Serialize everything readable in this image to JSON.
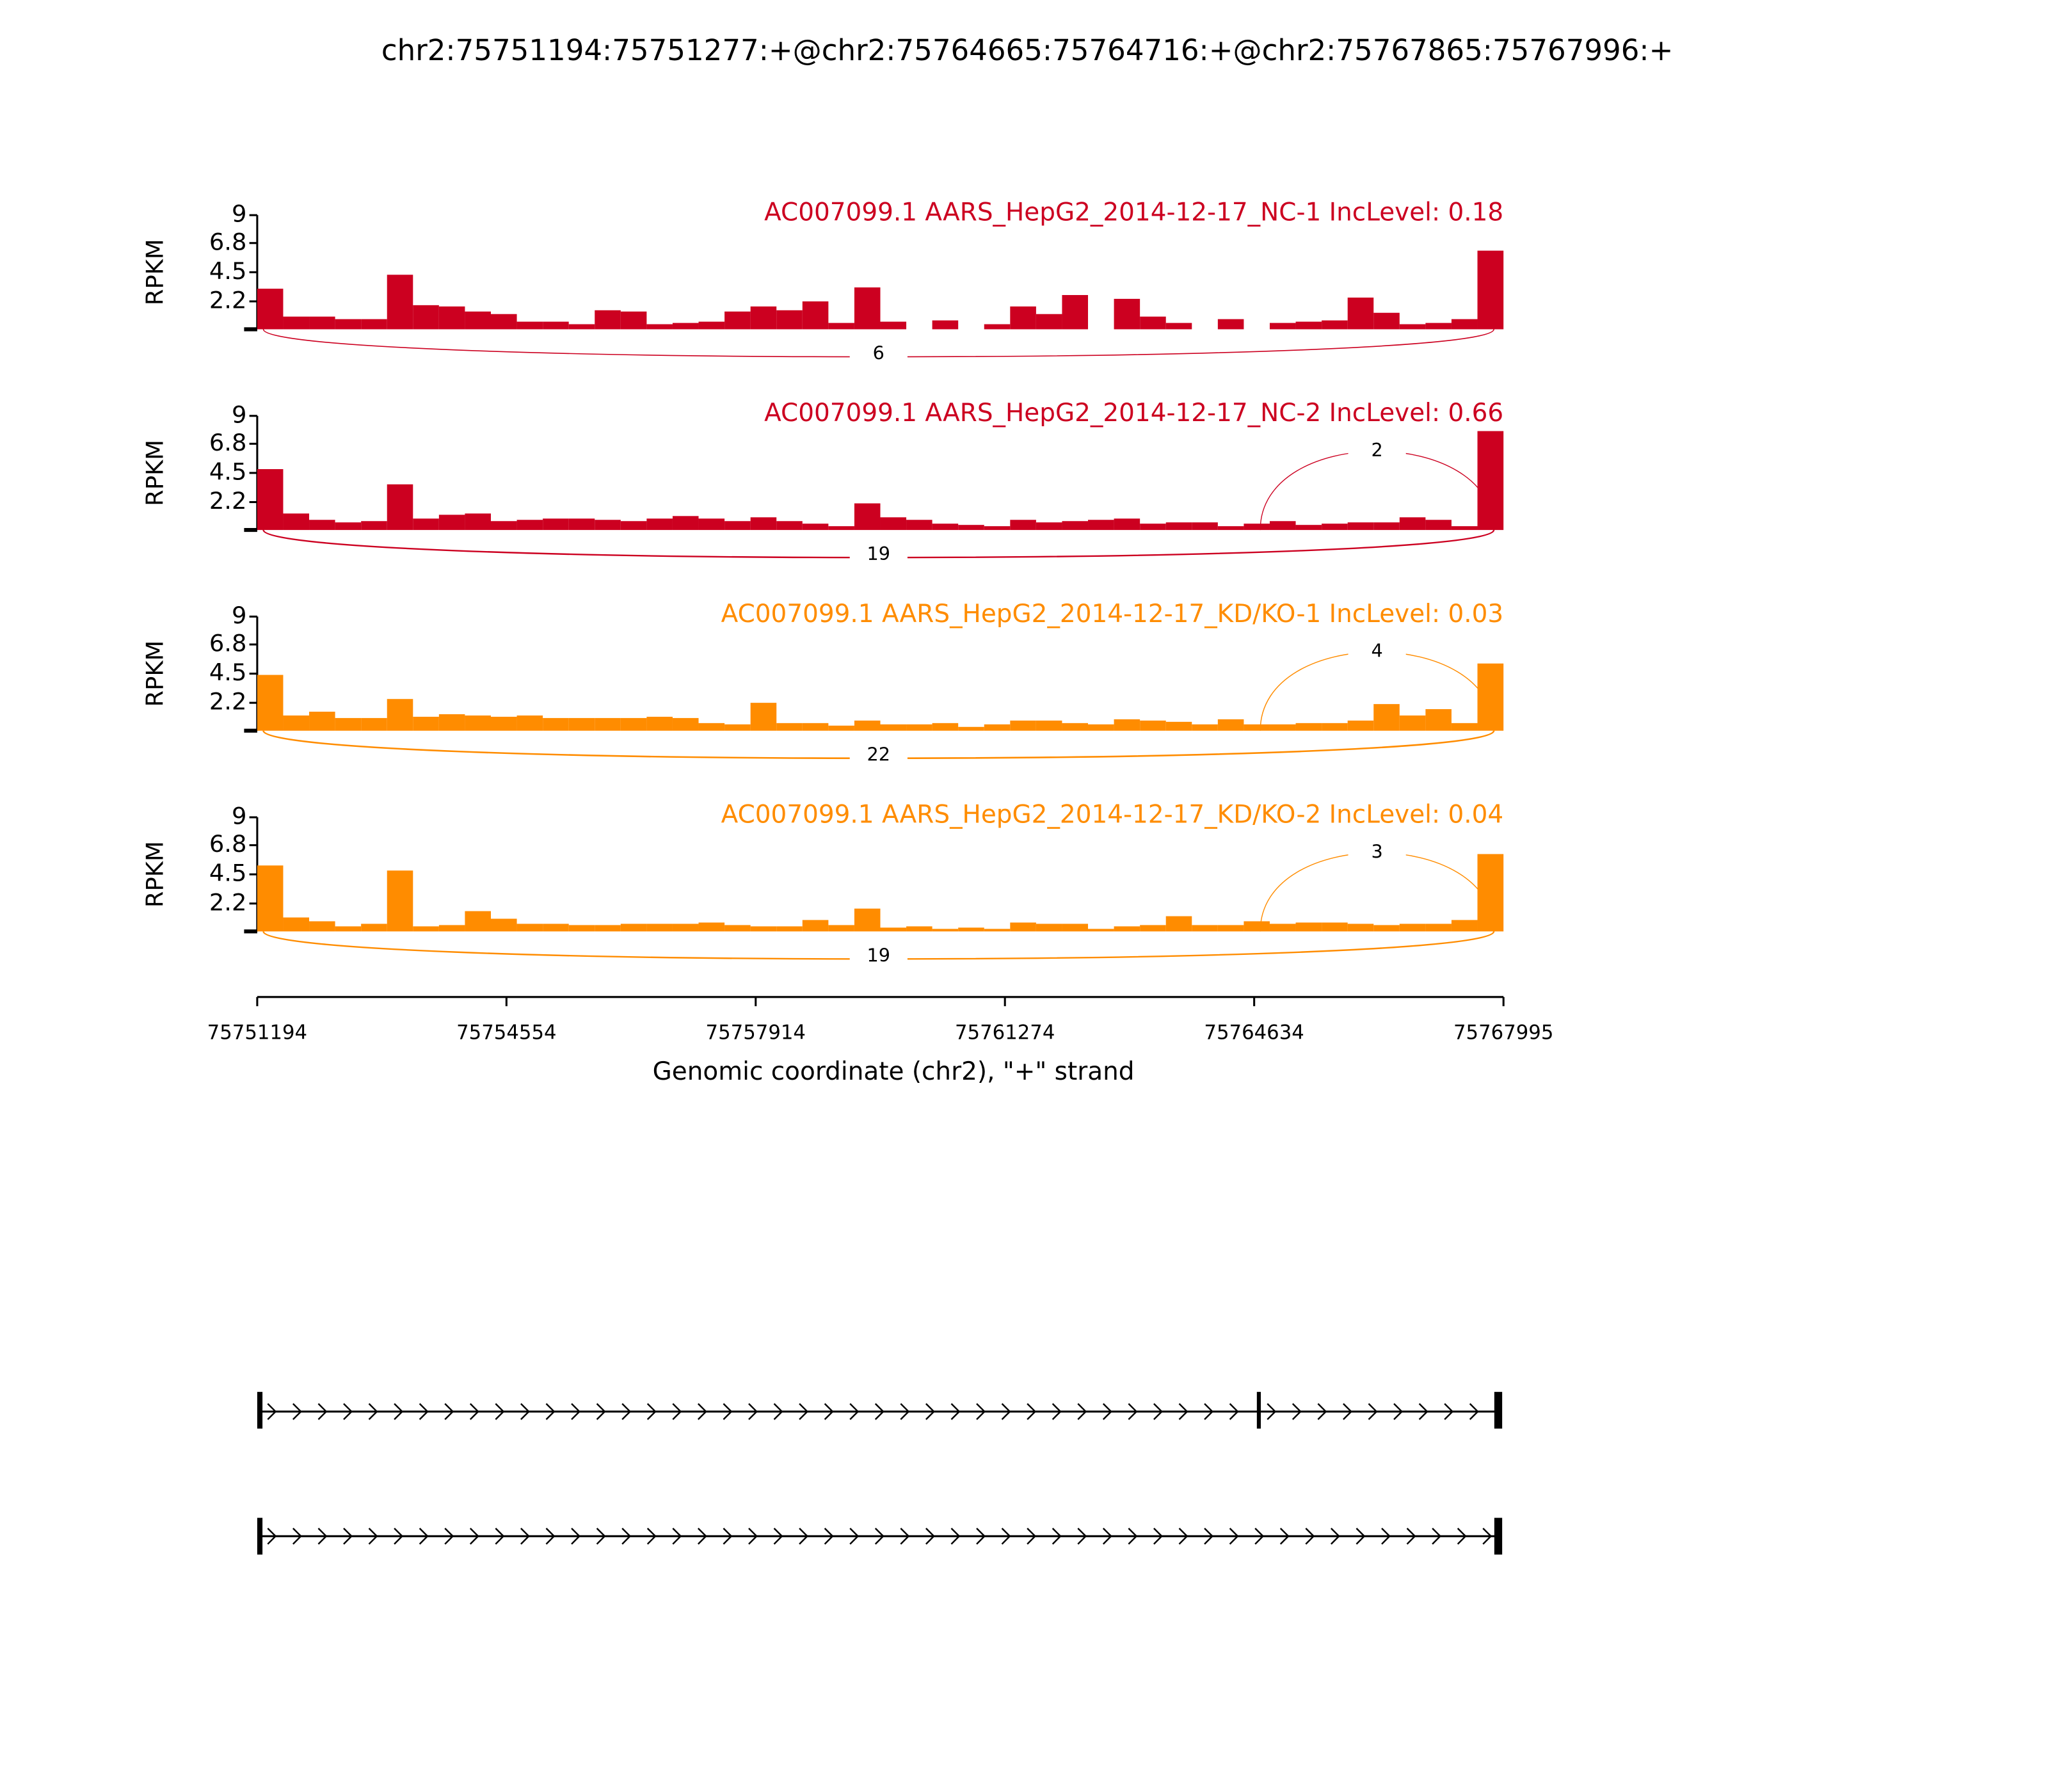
{
  "chart_data": {
    "type": "sashimi",
    "title": "chr2:75751194:75751277:+@chr2:75764665:75764716:+@chr2:75767865:75767996:+",
    "xlabel": "Genomic coordinate (chr2), \"+\" strand",
    "xlim": [
      75751194,
      75767995
    ],
    "xticks": [
      75751194,
      75754554,
      75757914,
      75761274,
      75764634,
      75767995
    ],
    "bins": [
      75751194,
      75751544,
      75751894,
      75752244,
      75752594,
      75752944,
      75753294,
      75753644,
      75753994,
      75754344,
      75754694,
      75755044,
      75755394,
      75755744,
      75756094,
      75756444,
      75756794,
      75757144,
      75757494,
      75757844,
      75758194,
      75758544,
      75758894,
      75759244,
      75759594,
      75759944,
      75760294,
      75760644,
      75760994,
      75761344,
      75761694,
      75762044,
      75762394,
      75762744,
      75763094,
      75763444,
      75763794,
      75764144,
      75764494,
      75764844,
      75765194,
      75765544,
      75765894,
      75766244,
      75766594,
      75766944,
      75767294,
      75767644,
      75767995
    ],
    "tracks": [
      {
        "title": "AC007099.1 AARS_HepG2_2014-12-17_NC-1 IncLevel: 0.18",
        "ylabel": "RPKM",
        "color": "#cc0020",
        "ylim": [
          0,
          9
        ],
        "yticks": [
          2.2,
          4.5,
          6.8,
          9
        ],
        "values": [
          3.2,
          1,
          1,
          0.8,
          0.8,
          4.3,
          1.9,
          1.8,
          1.4,
          1.2,
          0.6,
          0.6,
          0.4,
          1.5,
          1.4,
          0.4,
          0.5,
          0.6,
          1.4,
          1.8,
          1.5,
          2.2,
          0.5,
          3.3,
          0.6,
          0,
          0.7,
          0,
          0.4,
          1.8,
          1.2,
          2.7,
          0,
          2.4,
          1,
          0.5,
          0,
          0.8,
          0,
          0.5,
          0.6,
          0.7,
          2.5,
          1.3,
          0.4,
          0.5,
          0.8,
          6.2
        ],
        "junctions": [
          {
            "start": 75751277,
            "end": 75767865,
            "count": 6,
            "position": "below"
          }
        ]
      },
      {
        "title": "AC007099.1 AARS_HepG2_2014-12-17_NC-2 IncLevel: 0.66",
        "ylabel": "RPKM",
        "color": "#cc0020",
        "ylim": [
          0,
          9
        ],
        "yticks": [
          2.2,
          4.5,
          6.8,
          9
        ],
        "values": [
          4.8,
          1.3,
          0.8,
          0.6,
          0.7,
          3.6,
          0.9,
          1.2,
          1.3,
          0.7,
          0.8,
          0.9,
          0.9,
          0.8,
          0.7,
          0.9,
          1.1,
          0.9,
          0.7,
          1,
          0.7,
          0.5,
          0.3,
          2.1,
          1,
          0.8,
          0.5,
          0.4,
          0.3,
          0.8,
          0.6,
          0.7,
          0.8,
          0.9,
          0.5,
          0.6,
          0.6,
          0.3,
          0.5,
          0.7,
          0.4,
          0.5,
          0.6,
          0.6,
          1,
          0.8,
          0.3,
          7.8
        ],
        "junctions": [
          {
            "start": 75764716,
            "end": 75767865,
            "count": 2,
            "position": "above"
          },
          {
            "start": 75751277,
            "end": 75767865,
            "count": 19,
            "position": "below"
          }
        ]
      },
      {
        "title": "AC007099.1 AARS_HepG2_2014-12-17_KD/KO-1 IncLevel: 0.03",
        "ylabel": "RPKM",
        "color": "#ff8c00",
        "ylim": [
          0,
          9
        ],
        "yticks": [
          2.2,
          4.5,
          6.8,
          9
        ],
        "values": [
          4.4,
          1.2,
          1.5,
          1,
          1,
          2.5,
          1.1,
          1.3,
          1.2,
          1.1,
          1.2,
          1,
          1,
          1,
          1,
          1.1,
          1,
          0.6,
          0.5,
          2.2,
          0.6,
          0.6,
          0.4,
          0.8,
          0.5,
          0.5,
          0.6,
          0.3,
          0.5,
          0.8,
          0.8,
          0.6,
          0.5,
          0.9,
          0.8,
          0.7,
          0.5,
          0.9,
          0.5,
          0.5,
          0.6,
          0.6,
          0.8,
          2.1,
          1.2,
          1.7,
          0.6,
          5.3
        ],
        "junctions": [
          {
            "start": 75764716,
            "end": 75767865,
            "count": 4,
            "position": "above"
          },
          {
            "start": 75751277,
            "end": 75767865,
            "count": 22,
            "position": "below"
          }
        ]
      },
      {
        "title": "AC007099.1 AARS_HepG2_2014-12-17_KD/KO-2 IncLevel: 0.04",
        "ylabel": "RPKM",
        "color": "#ff8c00",
        "ylim": [
          0,
          9
        ],
        "yticks": [
          2.2,
          4.5,
          6.8,
          9
        ],
        "values": [
          5.2,
          1.1,
          0.8,
          0.4,
          0.6,
          4.8,
          0.4,
          0.5,
          1.6,
          1,
          0.6,
          0.6,
          0.5,
          0.5,
          0.6,
          0.6,
          0.6,
          0.7,
          0.5,
          0.4,
          0.4,
          0.9,
          0.5,
          1.8,
          0.3,
          0.4,
          0.2,
          0.3,
          0.2,
          0.7,
          0.6,
          0.6,
          0.2,
          0.4,
          0.5,
          1.2,
          0.5,
          0.5,
          0.8,
          0.6,
          0.7,
          0.7,
          0.6,
          0.5,
          0.6,
          0.6,
          0.9,
          6.1
        ],
        "junctions": [
          {
            "start": 75764716,
            "end": 75767865,
            "count": 3,
            "position": "above"
          },
          {
            "start": 75751277,
            "end": 75767865,
            "count": 19,
            "position": "below"
          }
        ]
      }
    ]
  }
}
